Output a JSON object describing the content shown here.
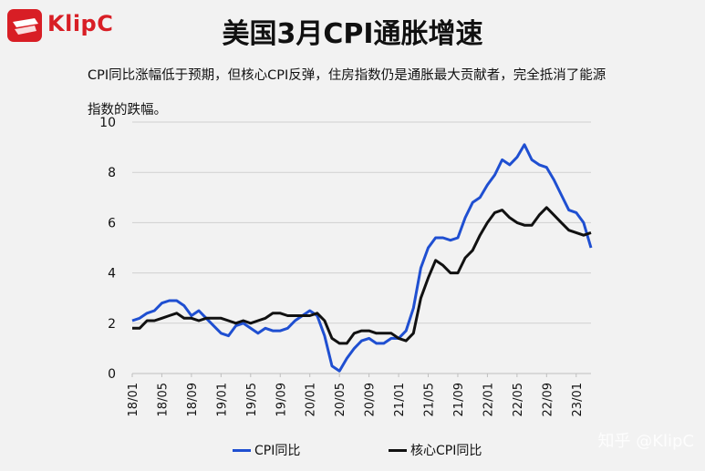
{
  "logo": {
    "text": "KlipC",
    "brand_color": "#d81e25"
  },
  "title": "美国3月CPI通胀增速",
  "subtitle": "CPI同比涨幅低于预期，但核心CPI反弹，住房指数仍是通胀最大贡献者，完全抵消了能源指数的跌幅。",
  "watermark": "知乎 @KlipC",
  "chart_data": {
    "type": "line",
    "ylim": [
      0,
      10
    ],
    "yticks": [
      0,
      2,
      4,
      6,
      8,
      10
    ],
    "grid": true,
    "legend_position": "bottom",
    "x": [
      "18/01",
      "18/02",
      "18/03",
      "18/04",
      "18/05",
      "18/06",
      "18/07",
      "18/08",
      "18/09",
      "18/10",
      "18/11",
      "18/12",
      "19/01",
      "19/02",
      "19/03",
      "19/04",
      "19/05",
      "19/06",
      "19/07",
      "19/08",
      "19/09",
      "19/10",
      "19/11",
      "19/12",
      "20/01",
      "20/02",
      "20/03",
      "20/04",
      "20/05",
      "20/06",
      "20/07",
      "20/08",
      "20/09",
      "20/10",
      "20/11",
      "20/12",
      "21/01",
      "21/02",
      "21/03",
      "21/04",
      "21/05",
      "21/06",
      "21/07",
      "21/08",
      "21/09",
      "21/10",
      "21/11",
      "21/12",
      "22/01",
      "22/02",
      "22/03",
      "22/04",
      "22/05",
      "22/06",
      "22/07",
      "22/08",
      "22/09",
      "22/10",
      "22/11",
      "22/12",
      "23/01",
      "23/02",
      "23/03"
    ],
    "xtick_labels": [
      "18/01",
      "18/05",
      "18/09",
      "19/01",
      "19/05",
      "19/09",
      "20/01",
      "20/05",
      "20/09",
      "21/01",
      "21/05",
      "21/09",
      "22/01",
      "22/05",
      "22/09",
      "23/01"
    ],
    "series": [
      {
        "name": "CPI同比",
        "color": "#1f4fd1",
        "values": [
          2.1,
          2.2,
          2.4,
          2.5,
          2.8,
          2.9,
          2.9,
          2.7,
          2.3,
          2.5,
          2.2,
          1.9,
          1.6,
          1.5,
          1.9,
          2.0,
          1.8,
          1.6,
          1.8,
          1.7,
          1.7,
          1.8,
          2.1,
          2.3,
          2.5,
          2.3,
          1.5,
          0.3,
          0.1,
          0.6,
          1.0,
          1.3,
          1.4,
          1.2,
          1.2,
          1.4,
          1.4,
          1.7,
          2.6,
          4.2,
          5.0,
          5.4,
          5.4,
          5.3,
          5.4,
          6.2,
          6.8,
          7.0,
          7.5,
          7.9,
          8.5,
          8.3,
          8.6,
          9.1,
          8.5,
          8.3,
          8.2,
          7.7,
          7.1,
          6.5,
          6.4,
          6.0,
          5.0
        ]
      },
      {
        "name": "核心CPI同比",
        "color": "#111111",
        "values": [
          1.8,
          1.8,
          2.1,
          2.1,
          2.2,
          2.3,
          2.4,
          2.2,
          2.2,
          2.1,
          2.2,
          2.2,
          2.2,
          2.1,
          2.0,
          2.1,
          2.0,
          2.1,
          2.2,
          2.4,
          2.4,
          2.3,
          2.3,
          2.3,
          2.3,
          2.4,
          2.1,
          1.4,
          1.2,
          1.2,
          1.6,
          1.7,
          1.7,
          1.6,
          1.6,
          1.6,
          1.4,
          1.3,
          1.6,
          3.0,
          3.8,
          4.5,
          4.3,
          4.0,
          4.0,
          4.6,
          4.9,
          5.5,
          6.0,
          6.4,
          6.5,
          6.2,
          6.0,
          5.9,
          5.9,
          6.3,
          6.6,
          6.3,
          6.0,
          5.7,
          5.6,
          5.5,
          5.6
        ]
      }
    ]
  }
}
